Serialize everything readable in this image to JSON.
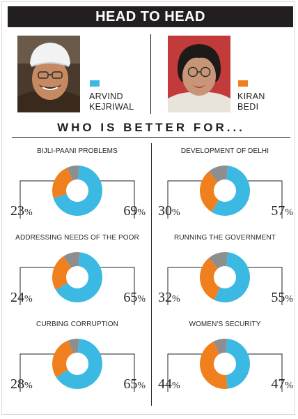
{
  "header": {
    "title": "HEAD TO HEAD"
  },
  "candidates": [
    {
      "name_line1": "ARVIND",
      "name_line2": "KEJRIWAL",
      "color": "#3bb9e3"
    },
    {
      "name_line1": "KIRAN",
      "name_line2": "BEDI",
      "color": "#f07f1e"
    }
  ],
  "question": "WHO IS BETTER FOR...",
  "colors": {
    "kejriwal": "#3bb9e3",
    "bedi": "#f07f1e",
    "other": "#8e8e8e",
    "text": "#231f20"
  },
  "chart_data": [
    {
      "type": "pie",
      "title": "BIJLI-PAANI PROBLEMS",
      "labels": [
        "Kejriwal",
        "Bedi",
        "Others"
      ],
      "values": [
        69,
        23,
        8
      ],
      "shown": {
        "bedi": "23",
        "kejriwal": "69"
      }
    },
    {
      "type": "pie",
      "title": "DEVELOPMENT OF DELHI",
      "labels": [
        "Kejriwal",
        "Bedi",
        "Others"
      ],
      "values": [
        57,
        30,
        13
      ],
      "shown": {
        "bedi": "30",
        "kejriwal": "57"
      }
    },
    {
      "type": "pie",
      "title": "ADDRESSING NEEDS OF THE POOR",
      "labels": [
        "Kejriwal",
        "Bedi",
        "Others"
      ],
      "values": [
        65,
        24,
        11
      ],
      "shown": {
        "bedi": "24",
        "kejriwal": "65"
      }
    },
    {
      "type": "pie",
      "title": "RUNNING THE GOVERNMENT",
      "labels": [
        "Kejriwal",
        "Bedi",
        "Others"
      ],
      "values": [
        55,
        32,
        13
      ],
      "shown": {
        "bedi": "32",
        "kejriwal": "55"
      }
    },
    {
      "type": "pie",
      "title": "CURBING CORRUPTION",
      "labels": [
        "Kejriwal",
        "Bedi",
        "Others"
      ],
      "values": [
        65,
        28,
        7
      ],
      "shown": {
        "bedi": "28",
        "kejriwal": "65"
      }
    },
    {
      "type": "pie",
      "title": "WOMEN'S SECURITY",
      "labels": [
        "Kejriwal",
        "Bedi",
        "Others"
      ],
      "values": [
        47,
        44,
        9
      ],
      "shown": {
        "bedi": "44",
        "kejriwal": "47"
      }
    }
  ]
}
